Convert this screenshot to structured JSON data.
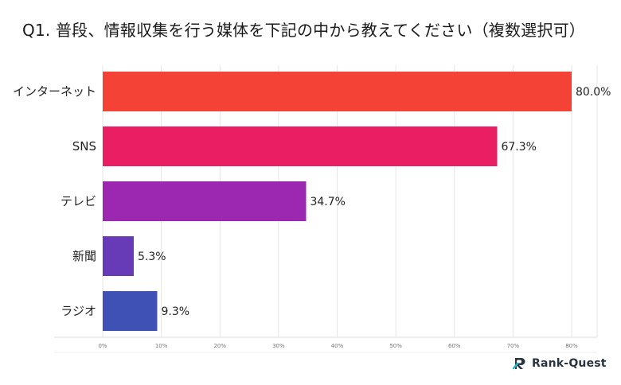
{
  "title": "Q1. 普段、情報収集を行う媒体を下記の中から教えてください（複数選択可）",
  "logo": {
    "text": "Rank-Quest",
    "icon": "rank-quest-logo-icon"
  },
  "chart_data": {
    "type": "bar",
    "orientation": "horizontal",
    "categories": [
      "インターネット",
      "SNS",
      "テレビ",
      "新聞",
      "ラジオ"
    ],
    "values": [
      80.0,
      67.3,
      34.7,
      5.3,
      9.3
    ],
    "value_labels": [
      "80.0%",
      "67.3%",
      "34.7%",
      "5.3%",
      "9.3%"
    ],
    "colors": [
      "#f44336",
      "#e91e63",
      "#9c27b0",
      "#673ab7",
      "#3f51b5"
    ],
    "x_ticks": [
      0,
      10,
      20,
      30,
      40,
      50,
      60,
      70,
      80
    ],
    "x_tick_labels": [
      "0%",
      "10%",
      "20%",
      "30%",
      "40%",
      "50%",
      "60%",
      "70%",
      "80%"
    ],
    "xlim": [
      0,
      80
    ],
    "grid": true,
    "xlabel": "",
    "ylabel": ""
  }
}
